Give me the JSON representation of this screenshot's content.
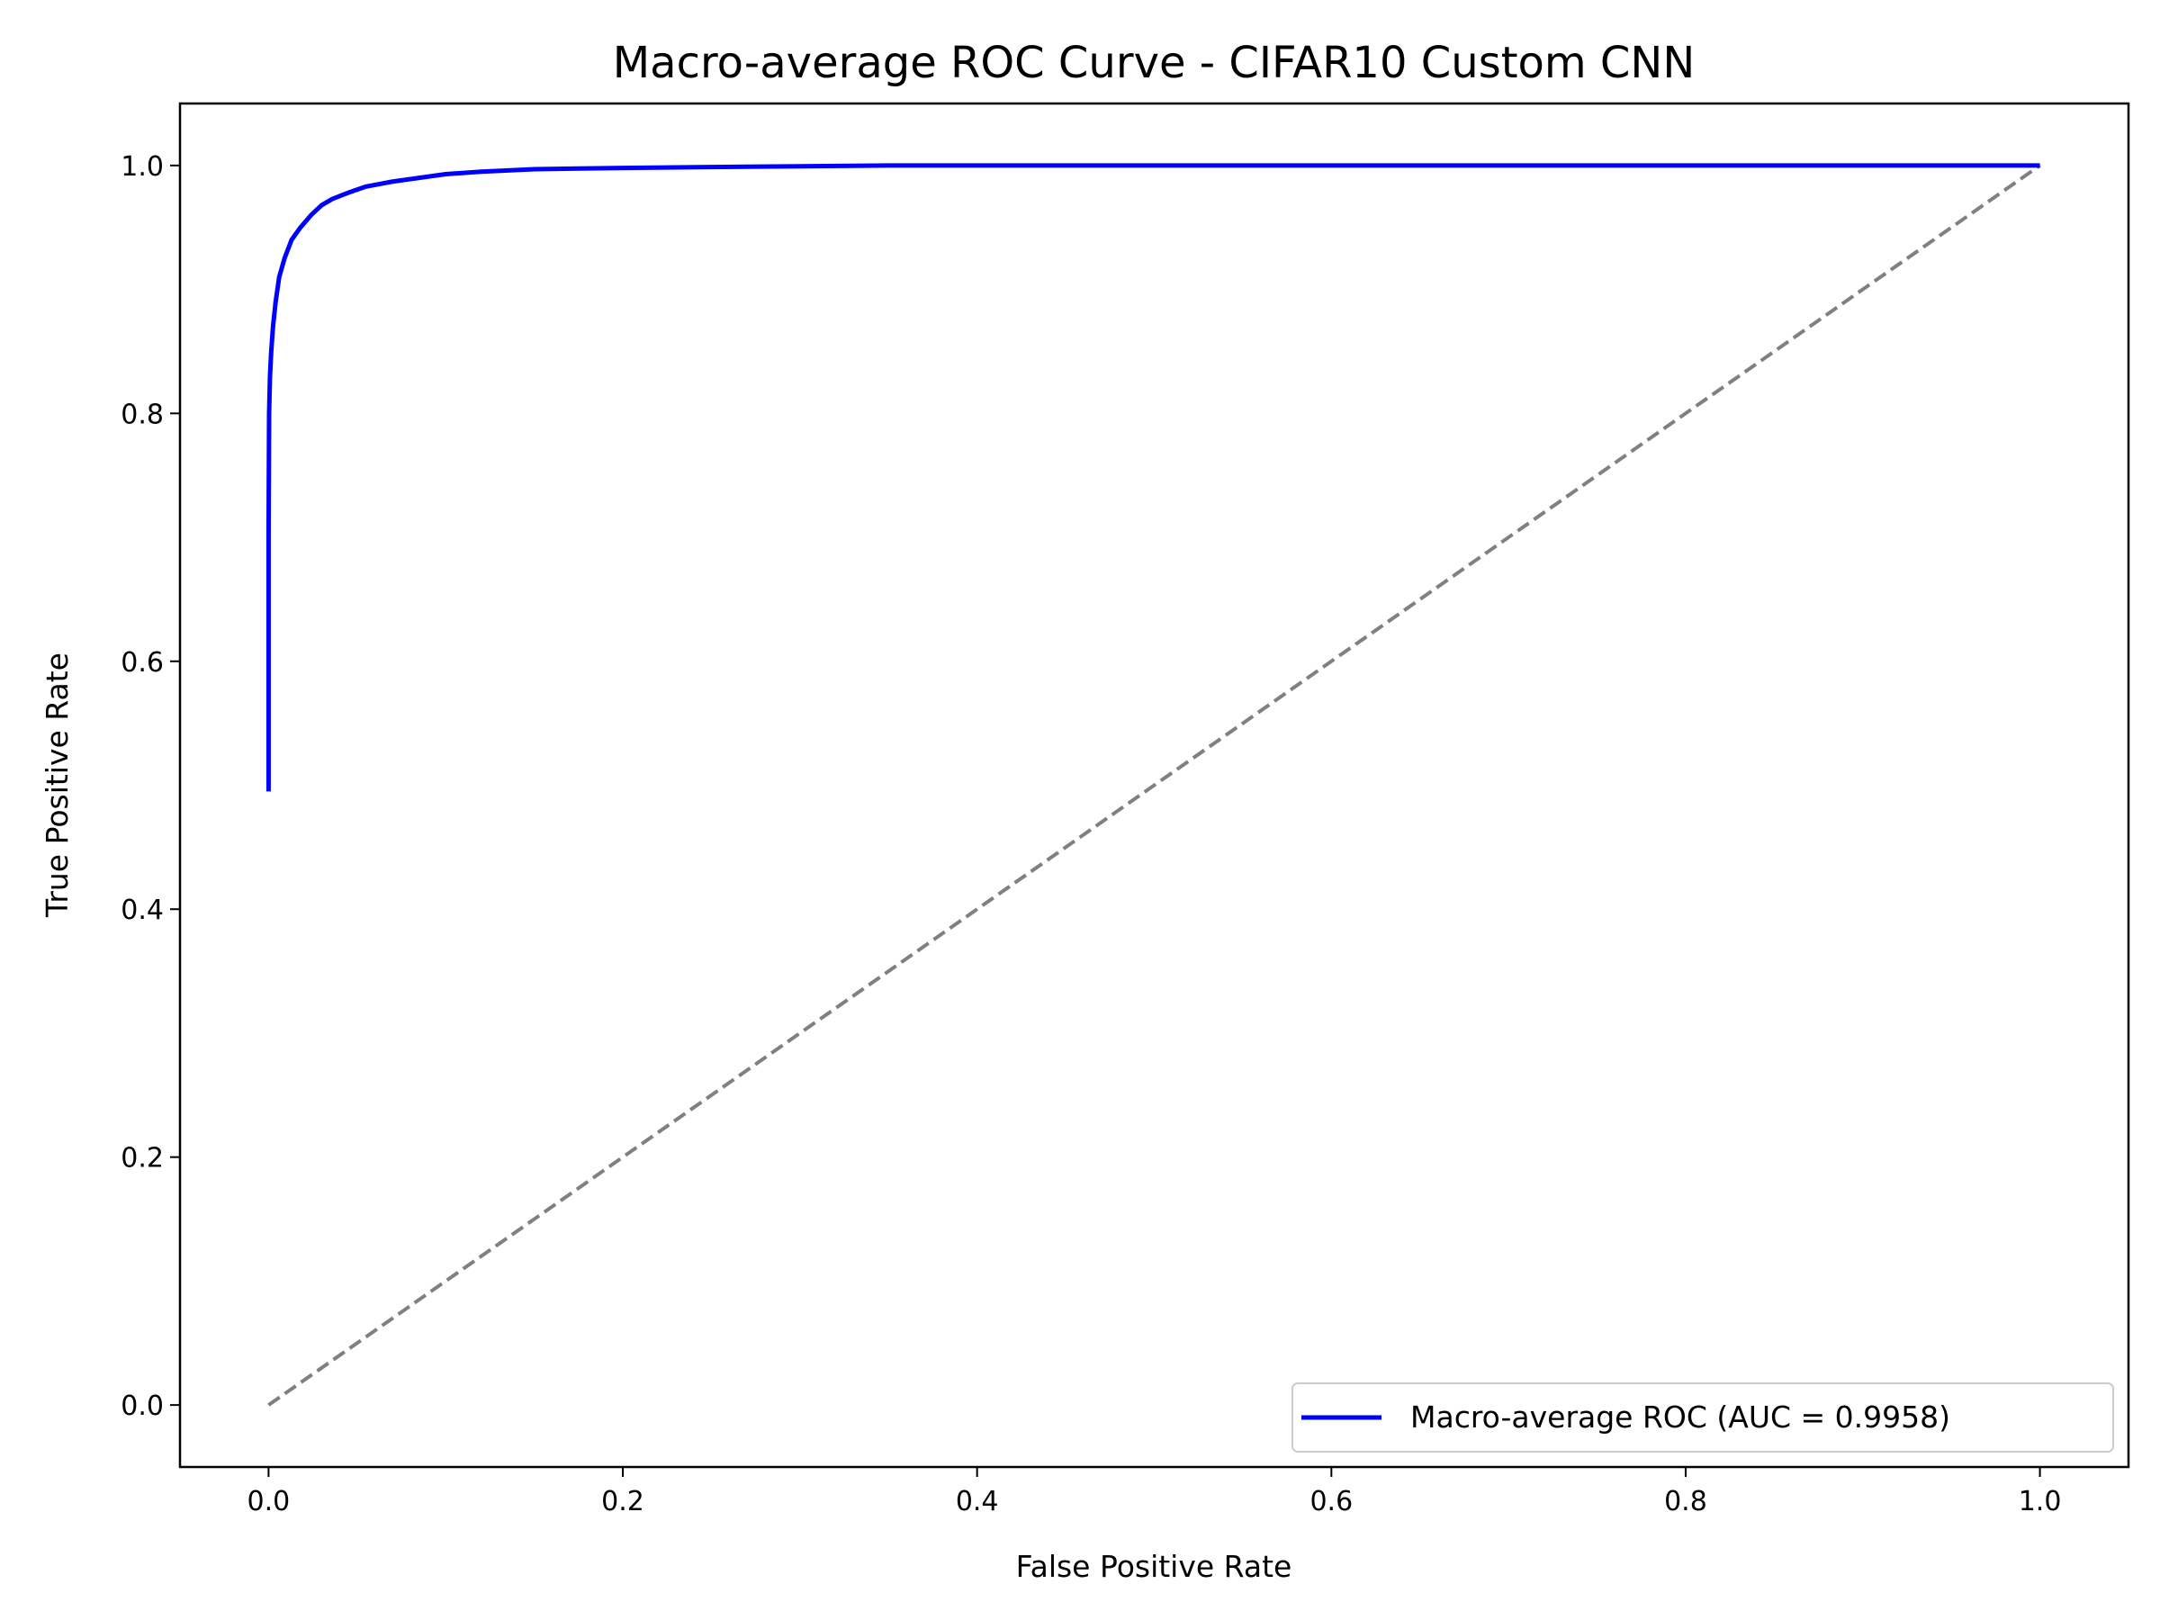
{
  "chart_data": {
    "type": "line",
    "title": "Macro-average ROC Curve - CIFAR10 Custom CNN",
    "xlabel": "False Positive Rate",
    "ylabel": "True Positive Rate",
    "xlim": [
      -0.05,
      1.05
    ],
    "ylim": [
      -0.05,
      1.05
    ],
    "xticks": [
      0.0,
      0.2,
      0.4,
      0.6,
      0.8,
      1.0
    ],
    "yticks": [
      0.0,
      0.2,
      0.4,
      0.6,
      0.8,
      1.0
    ],
    "xtick_labels": [
      "0.0",
      "0.2",
      "0.4",
      "0.6",
      "0.8",
      "1.0"
    ],
    "ytick_labels": [
      "0.0",
      "0.2",
      "0.4",
      "0.6",
      "0.8",
      "1.0"
    ],
    "grid": false,
    "legend_position": "lower-right",
    "series": [
      {
        "name": "Macro-average ROC (AUC = 0.9958)",
        "color": "#0000ff",
        "style": "solid",
        "x": [
          0.0,
          0.0,
          0.0003,
          0.0008,
          0.0015,
          0.0025,
          0.004,
          0.006,
          0.009,
          0.013,
          0.018,
          0.024,
          0.03,
          0.036,
          0.045,
          0.055,
          0.07,
          0.085,
          0.1,
          0.12,
          0.15,
          0.2,
          0.27,
          0.35,
          0.5,
          0.7,
          0.85,
          1.0
        ],
        "y": [
          0.495,
          0.7,
          0.8,
          0.83,
          0.85,
          0.87,
          0.89,
          0.91,
          0.925,
          0.94,
          0.95,
          0.96,
          0.968,
          0.973,
          0.978,
          0.983,
          0.987,
          0.99,
          0.993,
          0.995,
          0.997,
          0.998,
          0.999,
          1.0,
          1.0,
          1.0,
          1.0,
          1.0
        ]
      },
      {
        "name": "",
        "color": "#808080",
        "style": "dashed",
        "x": [
          0.0,
          1.0
        ],
        "y": [
          0.0,
          1.0
        ]
      }
    ]
  }
}
